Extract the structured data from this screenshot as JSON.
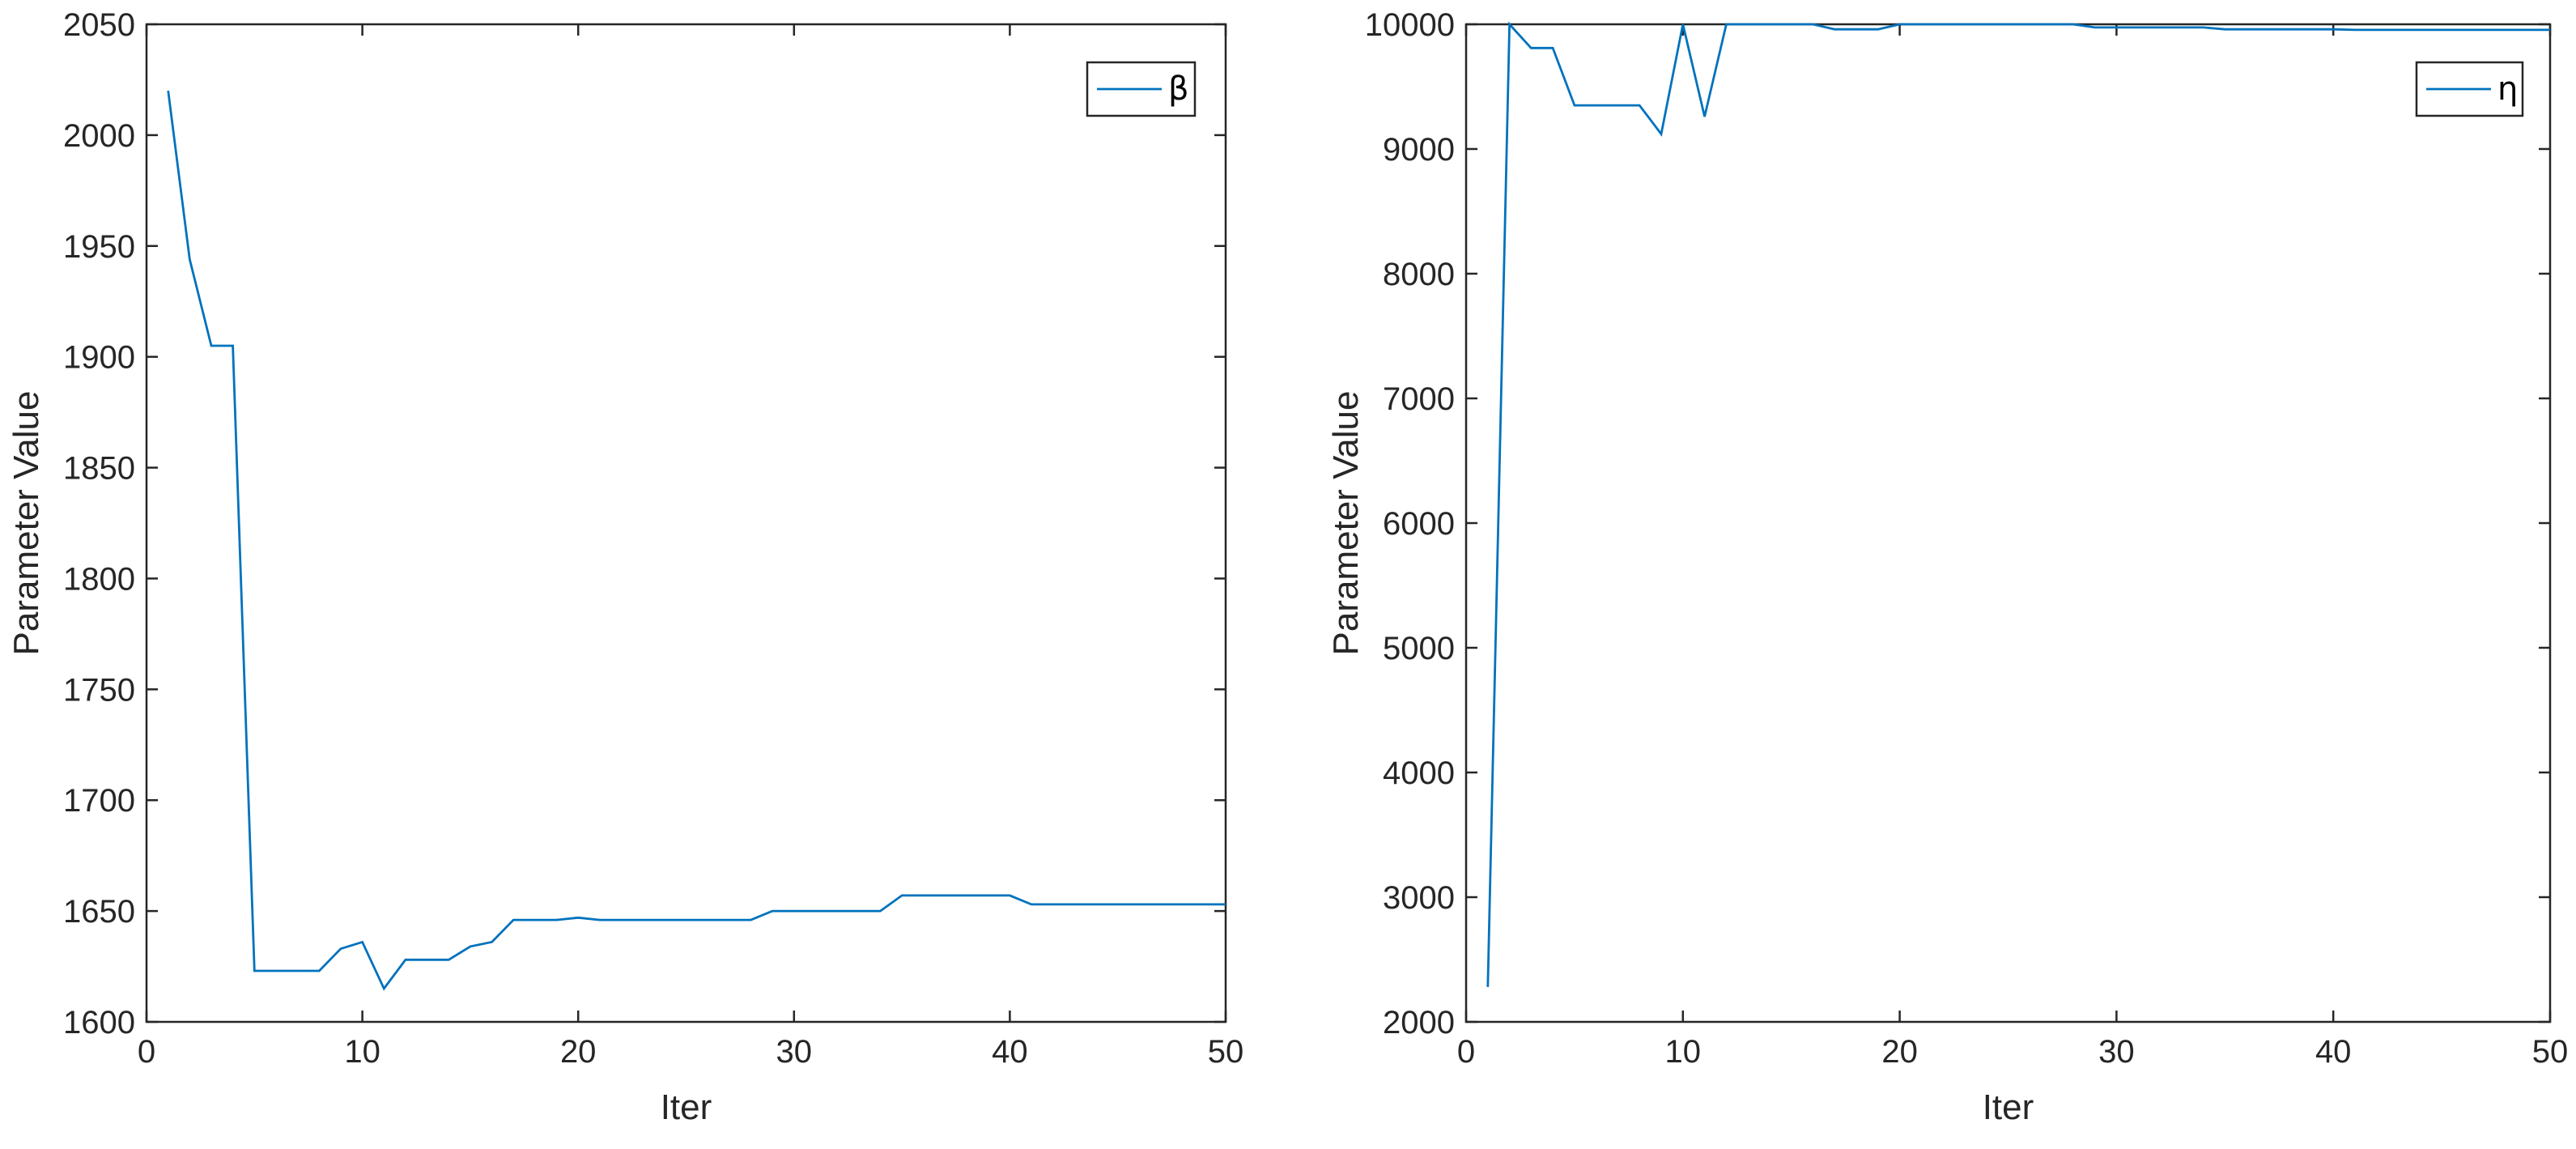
{
  "chart_data": [
    {
      "type": "line",
      "xlabel": "Iter",
      "ylabel": "Parameter Value",
      "xlim": [
        0,
        50
      ],
      "ylim": [
        1600,
        2050
      ],
      "xticks": [
        0,
        10,
        20,
        30,
        40,
        50
      ],
      "yticks": [
        1600,
        1650,
        1700,
        1750,
        1800,
        1850,
        1900,
        1950,
        2000,
        2050
      ],
      "grid": false,
      "legend_position": "top-right",
      "series": [
        {
          "name": "β",
          "color": "#0072BD",
          "x": [
            1,
            2,
            3,
            4,
            5,
            6,
            7,
            8,
            9,
            10,
            11,
            12,
            13,
            14,
            15,
            16,
            17,
            18,
            19,
            20,
            21,
            22,
            23,
            24,
            25,
            26,
            27,
            28,
            29,
            30,
            31,
            32,
            33,
            34,
            35,
            36,
            37,
            38,
            39,
            40,
            41,
            42,
            43,
            44,
            45,
            46,
            47,
            48,
            49,
            50
          ],
          "y": [
            2020,
            1944,
            1905,
            1905,
            1623,
            1623,
            1623,
            1623,
            1633,
            1636,
            1615,
            1628,
            1628,
            1628,
            1634,
            1636,
            1646,
            1646,
            1646,
            1647,
            1646,
            1646,
            1646,
            1646,
            1646,
            1646,
            1646,
            1646,
            1650,
            1650,
            1650,
            1650,
            1650,
            1650,
            1657,
            1657,
            1657,
            1657,
            1657,
            1657,
            1653,
            1653,
            1653,
            1653,
            1653,
            1653,
            1653,
            1653,
            1653,
            1653
          ]
        }
      ]
    },
    {
      "type": "line",
      "xlabel": "Iter",
      "ylabel": "Parameter Value",
      "xlim": [
        0,
        50
      ],
      "ylim": [
        2000,
        10000
      ],
      "xticks": [
        0,
        10,
        20,
        30,
        40,
        50
      ],
      "yticks": [
        2000,
        3000,
        4000,
        5000,
        6000,
        7000,
        8000,
        9000,
        10000
      ],
      "grid": false,
      "legend_position": "top-right",
      "series": [
        {
          "name": "η",
          "color": "#0072BD",
          "x": [
            1,
            2,
            3,
            4,
            5,
            6,
            7,
            8,
            9,
            10,
            11,
            12,
            13,
            14,
            15,
            16,
            17,
            18,
            19,
            20,
            21,
            22,
            23,
            24,
            25,
            26,
            27,
            28,
            29,
            30,
            31,
            32,
            33,
            34,
            35,
            36,
            37,
            38,
            39,
            40,
            41,
            42,
            43,
            44,
            45,
            46,
            47,
            48,
            49,
            50
          ],
          "y": [
            2280,
            10000,
            9810,
            9810,
            9350,
            9350,
            9350,
            9350,
            9120,
            10000,
            9260,
            10000,
            10000,
            10000,
            10000,
            10000,
            9960,
            9960,
            9960,
            10000,
            10000,
            10000,
            10000,
            10000,
            10000,
            10000,
            10000,
            10000,
            9975,
            9975,
            9975,
            9975,
            9975,
            9975,
            9960,
            9960,
            9960,
            9960,
            9960,
            9960,
            9955,
            9955,
            9955,
            9955,
            9955,
            9955,
            9955,
            9955,
            9955,
            9955
          ]
        }
      ]
    }
  ]
}
